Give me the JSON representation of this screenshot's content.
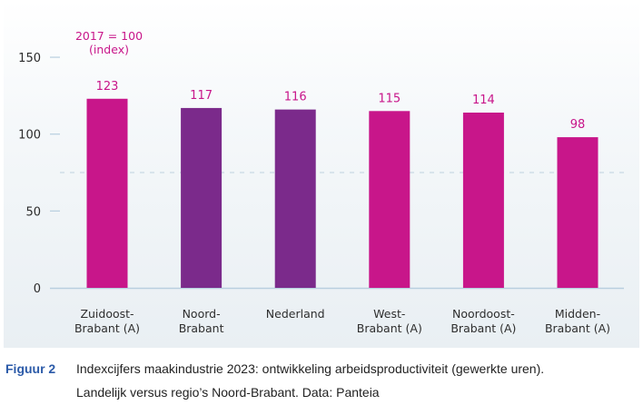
{
  "chart_data": {
    "type": "bar",
    "title": "Indexcijfers maakindustrie 2023: ontwikkeling arbeidsproductiviteit (gewerkte uren)",
    "annotation": [
      "2017 = 100",
      "(index)"
    ],
    "categories": [
      [
        "Zuidoost-",
        "Brabant (A)"
      ],
      [
        "Noord-",
        "Brabant"
      ],
      [
        "Nederland"
      ],
      [
        "West-",
        "Brabant (A)"
      ],
      [
        "Noordoost-",
        "Brabant (A)"
      ],
      [
        "Midden-",
        "Brabant (A)"
      ]
    ],
    "values": [
      123,
      117,
      116,
      115,
      114,
      98
    ],
    "bar_colors": [
      "#c8168a",
      "#7b2a8b",
      "#7b2a8b",
      "#c8168a",
      "#c8168a",
      "#c8168a"
    ],
    "value_label_color": "#c8168a",
    "yticks": [
      0,
      50,
      100,
      150
    ],
    "ylim": [
      0,
      160
    ],
    "reference_line": 75,
    "xlabel": "",
    "ylabel": "",
    "grid": false
  },
  "caption": {
    "figure_label": "Figuur 2",
    "line1": "Indexcijfers maakindustrie 2023: ontwikkeling arbeidsproductiviteit (gewerkte uren).",
    "line2": "Landelijk versus regio’s Noord-Brabant. Data: Panteia"
  }
}
